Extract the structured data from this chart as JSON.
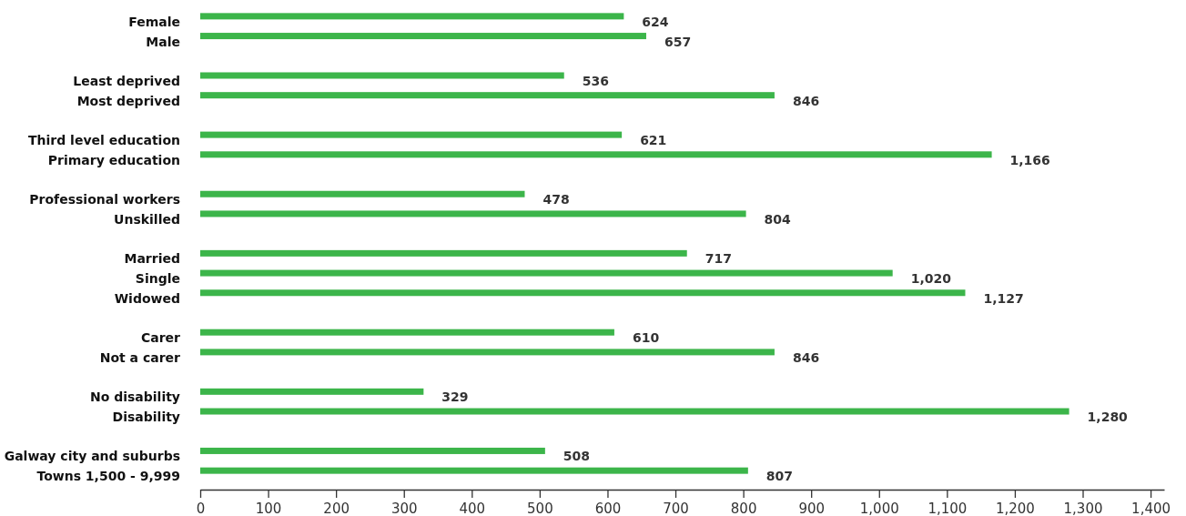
{
  "chart_data": {
    "type": "bar",
    "orientation": "horizontal",
    "categories": [
      "Female",
      "Male",
      null,
      "Least deprived",
      "Most deprived",
      null,
      "Third level education",
      "Primary education",
      null,
      "Professional workers",
      "Unskilled",
      null,
      "Married",
      "Single",
      "Widowed",
      null,
      "Carer",
      "Not a carer",
      null,
      "No disability",
      "Disability",
      null,
      "Galway city and suburbs",
      "Towns 1,500 - 9,999"
    ],
    "values": [
      624,
      657,
      null,
      536,
      846,
      null,
      621,
      1166,
      null,
      478,
      804,
      null,
      717,
      1020,
      1127,
      null,
      610,
      846,
      null,
      329,
      1280,
      null,
      508,
      807
    ],
    "value_labels": [
      "624",
      "657",
      null,
      "536",
      "846",
      null,
      "621",
      "1,166",
      null,
      "478",
      "804",
      null,
      "717",
      "1,020",
      "1,127",
      null,
      "610",
      "846",
      null,
      "329",
      "1,280",
      null,
      "508",
      "807"
    ],
    "color": "#3cb54a",
    "xlim": [
      0,
      1420
    ],
    "xticks": [
      0,
      100,
      200,
      300,
      400,
      500,
      600,
      700,
      800,
      900,
      {
        "value": 1000,
        "label": "1,000"
      },
      {
        "value": 1100,
        "label": "1,100"
      },
      {
        "value": 1200,
        "label": "1,200"
      },
      {
        "value": 1300,
        "label": "1,300"
      },
      {
        "value": 1400,
        "label": "1,400"
      }
    ],
    "grid": false
  }
}
